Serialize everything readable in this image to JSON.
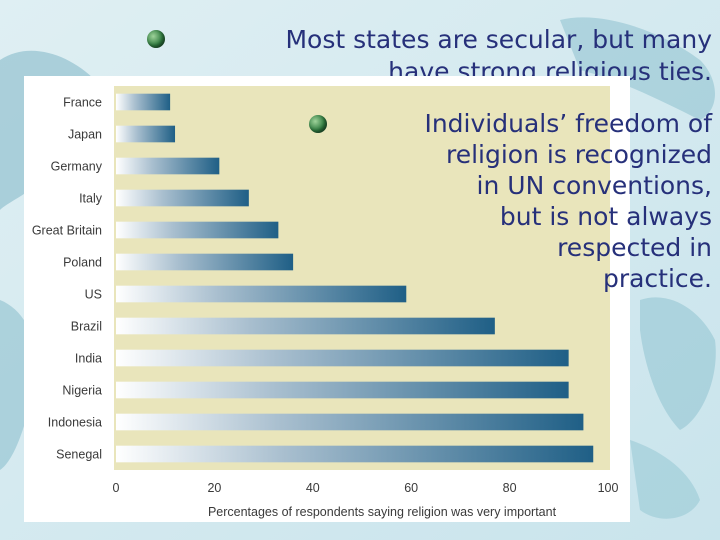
{
  "slide": {
    "title_lines": [
      "Most states are secular, but many",
      "have strong religious ties."
    ],
    "body_lines": [
      "Individuals’ freedom of",
      "religion is recognized",
      "in UN conventions,",
      "but is not always",
      "respected in",
      "practice."
    ],
    "colors": {
      "text": "#26307a",
      "bar_start": "#ffffff",
      "bar_end": "#1f5f86",
      "plot_bg": "#e9e5bb"
    }
  },
  "chart_data": {
    "type": "bar",
    "orientation": "horizontal",
    "categories": [
      "France",
      "Japan",
      "Germany",
      "Italy",
      "Great Britain",
      "Poland",
      "US",
      "Brazil",
      "India",
      "Nigeria",
      "Indonesia",
      "Senegal"
    ],
    "values": [
      11,
      12,
      21,
      27,
      33,
      36,
      59,
      77,
      92,
      92,
      95,
      97
    ],
    "xlim": [
      0,
      100
    ],
    "xticks": [
      "0",
      "20",
      "40",
      "60",
      "80",
      "100"
    ],
    "xlabel": "Percentages of respondents saying religion was very important",
    "title": "",
    "grid": false
  }
}
